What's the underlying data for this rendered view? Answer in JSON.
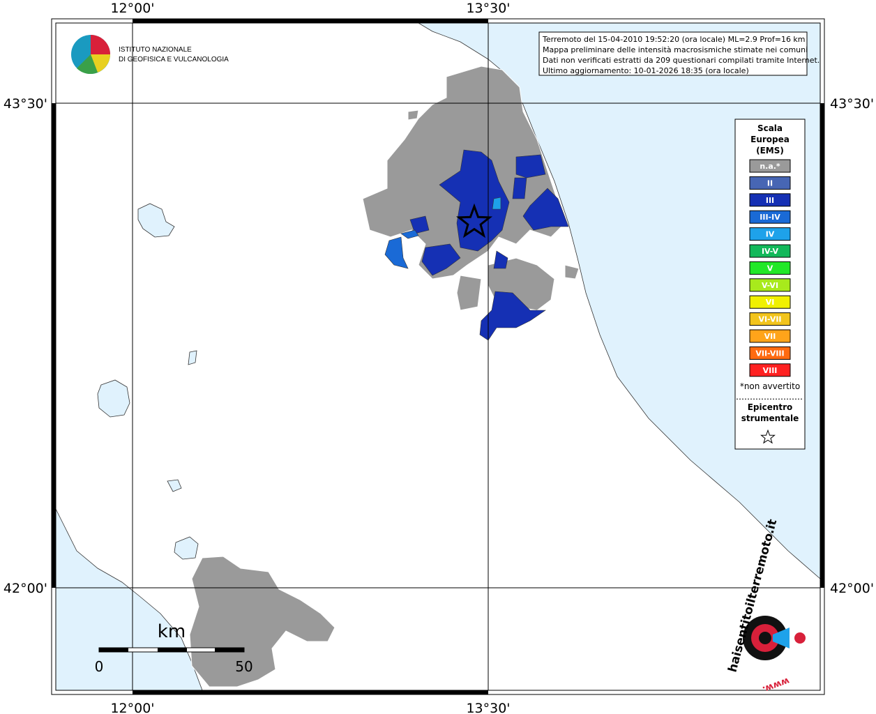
{
  "coordinates": {
    "top": [
      "12°00'",
      "13°30'"
    ],
    "bottom": [
      "12°00'",
      "13°30'"
    ],
    "left": [
      "43°30'",
      "42°00'"
    ],
    "right": [
      "43°30'",
      "42°00'"
    ]
  },
  "info": [
    "Terremoto del 15-04-2010 19:52:20 (ora locale) ML=2.9 Prof=16 km",
    "Mappa preliminare delle intensità macrosismiche stimate nei comuni",
    "Dati non verificati estratti da 209 questionari compilati tramite Internet.",
    "Ultimo aggiornamento: 10-01-2026 18:35 (ora locale)"
  ],
  "legend": {
    "title": [
      "Scala",
      "Europea",
      "(EMS)"
    ],
    "items": [
      {
        "label": "n.a.*",
        "color": "#9a9a9a"
      },
      {
        "label": "II",
        "color": "#4766b4"
      },
      {
        "label": "III",
        "color": "#1530b4"
      },
      {
        "label": "III-IV",
        "color": "#1a6ad6"
      },
      {
        "label": "IV",
        "color": "#1ea2ea"
      },
      {
        "label": "IV-V",
        "color": "#12b85a"
      },
      {
        "label": "V",
        "color": "#22e828"
      },
      {
        "label": "V-VI",
        "color": "#a8ea1c"
      },
      {
        "label": "VI",
        "color": "#f0f000"
      },
      {
        "label": "VI-VII",
        "color": "#f2c41c"
      },
      {
        "label": "VII",
        "color": "#ffa41a"
      },
      {
        "label": "VII-VIII",
        "color": "#ff6a10"
      },
      {
        "label": "VIII",
        "color": "#ff2222"
      }
    ],
    "note": "*non avvertito",
    "epicenter": [
      "Epicentro",
      "strumentale"
    ]
  },
  "scale": {
    "unit": "km",
    "labels": [
      "0",
      "50"
    ]
  },
  "logo": {
    "ingv": [
      "ISTITUTO NAZIONALE",
      "DI GEOFISICA E VULCANOLOGIA"
    ],
    "hsit": "haisentitoilterremoto.it",
    "www": "www."
  }
}
